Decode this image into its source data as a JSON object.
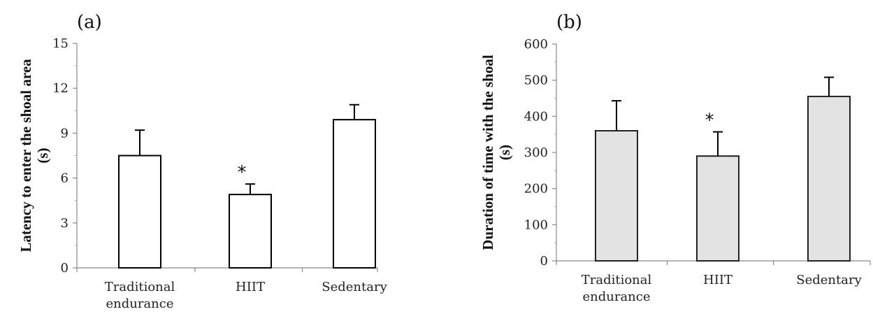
{
  "chart_data": [
    {
      "type": "bar",
      "panel_label": "(a)",
      "categories": [
        "Traditional endurance",
        "HIIT",
        "Sedentary"
      ],
      "category_lines": [
        [
          "Traditional",
          "endurance"
        ],
        [
          "HIIT"
        ],
        [
          "Sedentary"
        ]
      ],
      "values": [
        7.5,
        4.9,
        9.9
      ],
      "errors": [
        1.7,
        0.7,
        1.0
      ],
      "significance": [
        "",
        "*",
        ""
      ],
      "ylabel_lines": [
        "Latency to enter the shoal area",
        "(s)"
      ],
      "ylim": [
        0,
        15
      ],
      "yticks": [
        0,
        3,
        6,
        9,
        12,
        15
      ],
      "bar_fill": "#ffffff",
      "bar_stroke": "#000000"
    },
    {
      "type": "bar",
      "panel_label": "(b)",
      "categories": [
        "Traditional endurance",
        "HIIT",
        "Sedentary"
      ],
      "category_lines": [
        [
          "Traditional",
          "endurance"
        ],
        [
          "HIIT"
        ],
        [
          "Sedentary"
        ]
      ],
      "values": [
        360,
        290,
        455
      ],
      "errors": [
        83,
        67,
        53
      ],
      "significance": [
        "",
        "*",
        ""
      ],
      "ylabel_lines": [
        "Duration of time with the shoal",
        "(s)"
      ],
      "ylim": [
        0,
        600
      ],
      "yticks": [
        0,
        100,
        200,
        300,
        400,
        500,
        600
      ],
      "bar_fill": "#e3e3e3",
      "bar_stroke": "#222222"
    }
  ]
}
